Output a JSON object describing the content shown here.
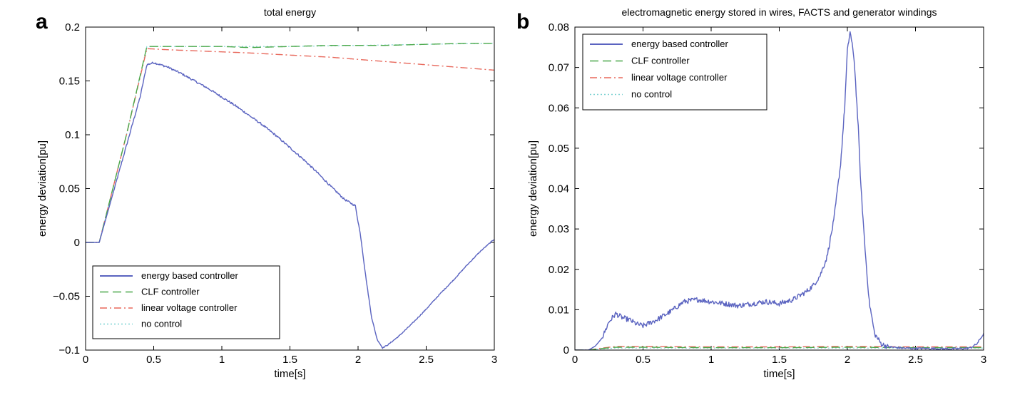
{
  "chart_data": [
    {
      "type": "line",
      "panel": "a",
      "title": "total energy",
      "xlabel": "time[s]",
      "ylabel": "energy deviation[pu]",
      "xlim": [
        0,
        3
      ],
      "ylim": [
        -0.1,
        0.2
      ],
      "xticks": [
        0,
        0.5,
        1,
        1.5,
        2,
        2.5,
        3
      ],
      "xtick_labels": [
        "0",
        "0.5",
        "1",
        "1.5",
        "2",
        "2.5",
        "3"
      ],
      "yticks": [
        -0.1,
        -0.05,
        0,
        0.05,
        0.1,
        0.15,
        0.2
      ],
      "ytick_labels": [
        "-0.1",
        "-0.05",
        "0",
        "0.05",
        "0.1",
        "0.15",
        "0.2"
      ],
      "legend_position": "bottom-left",
      "series": [
        {
          "name": "energy based controller",
          "color": "#5a63c0",
          "style": "solid",
          "x": [
            0,
            0.1,
            0.2,
            0.3,
            0.4,
            0.45,
            0.5,
            0.6,
            0.7,
            0.8,
            0.9,
            1.0,
            1.1,
            1.2,
            1.3,
            1.4,
            1.5,
            1.6,
            1.7,
            1.8,
            1.9,
            1.98,
            2.02,
            2.06,
            2.1,
            2.14,
            2.18,
            2.22,
            2.3,
            2.4,
            2.5,
            2.6,
            2.7,
            2.8,
            2.9,
            3.0
          ],
          "y": [
            0,
            0,
            0.045,
            0.09,
            0.135,
            0.165,
            0.167,
            0.163,
            0.157,
            0.15,
            0.143,
            0.135,
            0.127,
            0.118,
            0.109,
            0.099,
            0.088,
            0.077,
            0.065,
            0.052,
            0.04,
            0.034,
            0.005,
            -0.035,
            -0.07,
            -0.09,
            -0.098,
            -0.095,
            -0.087,
            -0.075,
            -0.062,
            -0.048,
            -0.035,
            -0.021,
            -0.008,
            0.003
          ]
        },
        {
          "name": "CLF controller",
          "color": "#4aa84a",
          "style": "dashed",
          "x": [
            0,
            0.1,
            0.2,
            0.3,
            0.45,
            0.6,
            0.8,
            1.0,
            1.2,
            1.5,
            1.8,
            2.0,
            2.2,
            2.5,
            2.8,
            3.0
          ],
          "y": [
            0,
            0,
            0.05,
            0.1,
            0.182,
            0.182,
            0.182,
            0.182,
            0.181,
            0.182,
            0.183,
            0.183,
            0.183,
            0.184,
            0.185,
            0.185
          ]
        },
        {
          "name": "linear voltage controller",
          "color": "#e8695c",
          "style": "dashdot",
          "x": [
            0,
            0.1,
            0.2,
            0.3,
            0.45,
            0.6,
            0.8,
            1.0,
            1.2,
            1.5,
            1.8,
            2.0,
            2.2,
            2.5,
            2.8,
            3.0
          ],
          "y": [
            0,
            0,
            0.05,
            0.1,
            0.18,
            0.179,
            0.178,
            0.177,
            0.176,
            0.174,
            0.172,
            0.17,
            0.168,
            0.165,
            0.162,
            0.16
          ]
        },
        {
          "name": "no control",
          "color": "#7fd3d3",
          "style": "dotted",
          "x": [
            0,
            0.1,
            0.2,
            0.3,
            0.45,
            0.6,
            1.0,
            1.5,
            2.0,
            2.5,
            3.0
          ],
          "y": [
            0,
            0,
            0.05,
            0.1,
            0.182,
            0.182,
            0.182,
            0.182,
            0.183,
            0.184,
            0.185
          ]
        }
      ]
    },
    {
      "type": "line",
      "panel": "b",
      "title": "electromagnetic energy stored in wires, FACTS and generator windings",
      "xlabel": "time[s]",
      "ylabel": "energy deviation[pu]",
      "xlim": [
        0,
        3
      ],
      "ylim": [
        0,
        0.08
      ],
      "xticks": [
        0,
        0.5,
        1,
        1.5,
        2,
        2.5,
        3
      ],
      "xtick_labels": [
        "0",
        "0.5",
        "1",
        "1.5",
        "2",
        "2.5",
        "3"
      ],
      "yticks": [
        0,
        0.01,
        0.02,
        0.03,
        0.04,
        0.05,
        0.06,
        0.07,
        0.08
      ],
      "ytick_labels": [
        "0",
        "0.01",
        "0.02",
        "0.03",
        "0.04",
        "0.05",
        "0.06",
        "0.07",
        "0.08"
      ],
      "legend_position": "top-left",
      "series": [
        {
          "name": "energy based controller",
          "color": "#5a63c0",
          "style": "solid",
          "x": [
            0,
            0.1,
            0.15,
            0.2,
            0.25,
            0.3,
            0.35,
            0.4,
            0.45,
            0.5,
            0.6,
            0.7,
            0.8,
            0.9,
            1.0,
            1.1,
            1.2,
            1.3,
            1.4,
            1.5,
            1.6,
            1.7,
            1.75,
            1.8,
            1.85,
            1.9,
            1.95,
            1.98,
            2.0,
            2.02,
            2.05,
            2.08,
            2.1,
            2.13,
            2.16,
            2.2,
            2.25,
            2.3,
            2.4,
            2.5,
            2.6,
            2.7,
            2.8,
            2.9,
            2.95,
            3.0
          ],
          "y": [
            0,
            0,
            0.001,
            0.003,
            0.007,
            0.009,
            0.008,
            0.0075,
            0.0065,
            0.006,
            0.0075,
            0.0095,
            0.012,
            0.0125,
            0.012,
            0.0115,
            0.011,
            0.0115,
            0.012,
            0.0115,
            0.0125,
            0.0145,
            0.016,
            0.0185,
            0.023,
            0.032,
            0.046,
            0.06,
            0.074,
            0.079,
            0.072,
            0.055,
            0.04,
            0.025,
            0.012,
            0.004,
            0.0015,
            0.0008,
            0.0005,
            0.0004,
            0.0004,
            0.0003,
            0.0003,
            0.0005,
            0.0015,
            0.004
          ]
        },
        {
          "name": "CLF controller",
          "color": "#4aa84a",
          "style": "dashed",
          "x": [
            0,
            0.1,
            0.2,
            0.3,
            0.5,
            1.0,
            1.5,
            2.0,
            2.5,
            3.0
          ],
          "y": [
            0,
            0,
            0.0004,
            0.0007,
            0.0007,
            0.0006,
            0.0006,
            0.0007,
            0.0006,
            0.0006
          ]
        },
        {
          "name": "linear voltage controller",
          "color": "#e8695c",
          "style": "dashdot",
          "x": [
            0,
            0.1,
            0.2,
            0.3,
            0.5,
            1.0,
            1.5,
            2.0,
            2.5,
            3.0
          ],
          "y": [
            0,
            0,
            0.0005,
            0.0009,
            0.0009,
            0.0008,
            0.0008,
            0.0009,
            0.0008,
            0.0008
          ]
        },
        {
          "name": "no control",
          "color": "#7fd3d3",
          "style": "dotted",
          "x": [
            0,
            0.1,
            0.2,
            0.3,
            0.5,
            1.0,
            1.5,
            2.0,
            2.5,
            3.0
          ],
          "y": [
            0,
            0,
            0.0003,
            0.0005,
            0.0005,
            0.0005,
            0.0005,
            0.0005,
            0.0005,
            0.0005
          ]
        }
      ]
    }
  ]
}
